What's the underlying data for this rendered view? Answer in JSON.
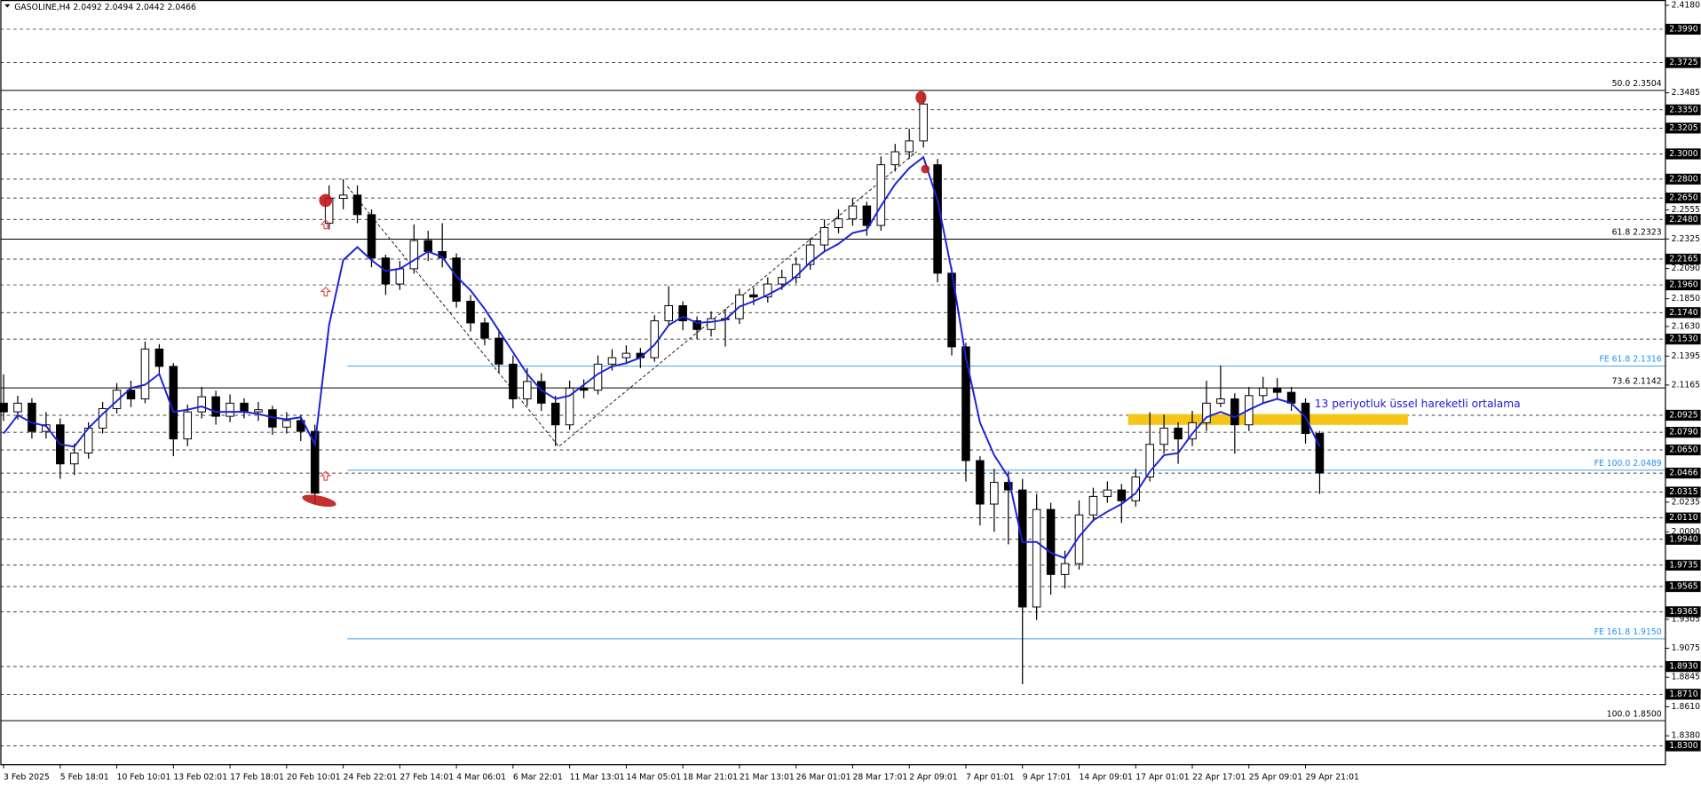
{
  "chart_data": {
    "type": "candlestick",
    "title": "GASOLINE,H4 2.0492 2.0494 2.0442 2.0466",
    "annotation": "13 periyotluk üssel hareketli ortalama",
    "up_color": "#ffffff",
    "down_color": "#000000",
    "ylim": [
      1.8155,
      2.4222
    ],
    "yticks": [
      {
        "value": 2.418,
        "label": "2.4180"
      },
      2.3485,
      2.2555,
      2.2325,
      {
        "value": 2.209,
        "label": "2.2090"
      },
      {
        "value": 2.185,
        "label": "2.1850"
      },
      {
        "value": 2.163,
        "label": "2.1630"
      },
      2.1395,
      2.1165,
      2.0235,
      {
        "value": 2.0,
        "label": "2.0000"
      },
      1.9305,
      1.9075,
      1.8845,
      {
        "value": 1.861,
        "label": "1.8610"
      },
      {
        "value": 1.838,
        "label": "1.8380"
      }
    ],
    "xticks": [
      {
        "value": 0,
        "label": "3 Feb 2025"
      },
      {
        "value": 4,
        "label": "5 Feb 18:01"
      },
      {
        "value": 8,
        "label": "10 Feb 10:01"
      },
      {
        "value": 12,
        "label": "13 Feb 02:01"
      },
      {
        "value": 16,
        "label": "17 Feb 18:01"
      },
      {
        "value": 20,
        "label": "20 Feb 10:01"
      },
      {
        "value": 24,
        "label": "24 Feb 22:01"
      },
      {
        "value": 28,
        "label": "27 Feb 14:01"
      },
      {
        "value": 32,
        "label": "4 Mar 06:01"
      },
      {
        "value": 36,
        "label": "6 Mar 22:01"
      },
      {
        "value": 40,
        "label": "11 Mar 13:01"
      },
      {
        "value": 44,
        "label": "14 Mar 05:01"
      },
      {
        "value": 48,
        "label": "18 Mar 21:01"
      },
      {
        "value": 52,
        "label": "21 Mar 13:01"
      },
      {
        "value": 56,
        "label": "26 Mar 01:01"
      },
      {
        "value": 60,
        "label": "28 Mar 17:01"
      },
      {
        "value": 64,
        "label": "2 Apr 09:01"
      },
      {
        "value": 68,
        "label": "7 Apr 01:01"
      },
      {
        "value": 72,
        "label": "9 Apr 17:01"
      },
      {
        "value": 76,
        "label": "14 Apr 09:01"
      },
      {
        "value": 80,
        "label": "17 Apr 01:01"
      },
      {
        "value": 84,
        "label": "22 Apr 17:01"
      },
      {
        "value": 88,
        "label": "25 Apr 09:01"
      },
      {
        "value": 92,
        "label": "29 Apr 21:01"
      }
    ],
    "levels": [
      {
        "value": 2.399,
        "label": "2.3990"
      },
      2.3725,
      {
        "value": 2.335,
        "label": "2.3350"
      },
      2.3205,
      {
        "value": 2.3,
        "label": "2.3000"
      },
      {
        "value": 2.28,
        "label": "2.2800"
      },
      {
        "value": 2.265,
        "label": "2.2650"
      },
      {
        "value": 2.248,
        "label": "2.2480"
      },
      2.2165,
      {
        "value": 2.196,
        "label": "2.1960"
      },
      {
        "value": 2.174,
        "label": "2.1740"
      },
      {
        "value": 2.153,
        "label": "2.1530"
      },
      2.0925,
      {
        "value": 2.079,
        "label": "2.0790"
      },
      {
        "value": 2.065,
        "label": "2.0650"
      },
      2.0466,
      2.0315,
      {
        "value": 2.011,
        "label": "2.0110"
      },
      {
        "value": 1.994,
        "label": "1.9940"
      },
      1.9735,
      1.9565,
      1.9365,
      {
        "value": 1.893,
        "label": "1.8930"
      },
      {
        "value": 1.871,
        "label": "1.8710"
      },
      {
        "value": 1.83,
        "label": "1.8300"
      }
    ],
    "fib_levels": [
      {
        "value": 2.3504,
        "label": "50.0 2.3504"
      },
      {
        "value": 2.2323,
        "label": "61.8 2.2323"
      },
      {
        "value": 2.1142,
        "label": "73.6 2.1142"
      },
      {
        "value": 1.85,
        "label": "100.0 1.8500"
      }
    ],
    "fe_levels": [
      {
        "value": 2.1316,
        "label": "FE 61.8 2.1316"
      },
      {
        "value": 2.0489,
        "label": "FE 100.0 2.0489"
      },
      {
        "value": 1.915,
        "label": "FE 161.8 1.9150"
      }
    ],
    "candles": {
      "open": [
        2.1021,
        2.0952,
        2.1021,
        2.0797,
        2.0849,
        2.0539,
        2.0625,
        2.0823,
        2.0978,
        2.1124,
        2.1055,
        2.1451,
        2.1313,
        2.0737,
        2.0952,
        2.1072,
        2.0917,
        2.1021,
        2.0952,
        2.0969,
        2.0831,
        2.0883,
        2.0797,
        2.245,
        2.2647,
        2.2673,
        2.2518,
        2.2174,
        2.1967,
        2.2088,
        2.2312,
        2.2225,
        2.2174,
        2.183,
        2.1658,
        2.1537,
        2.1331,
        2.1055,
        2.1193,
        2.1021,
        2.0849,
        2.1141,
        2.1124,
        2.1331,
        2.1382,
        2.1417,
        2.1382,
        2.1675,
        2.1795,
        2.1675,
        2.1606,
        2.1692,
        2.1692,
        2.1881,
        2.1864,
        2.1967,
        2.2019,
        2.2122,
        2.2277,
        2.2415,
        2.2484,
        2.2587,
        2.2432,
        2.2914,
        2.3017,
        2.3103,
        2.2914,
        2.2053,
        2.1468,
        2.0565,
        2.022,
        2.0392,
        2.0332,
        1.9403,
        2.0177,
        1.9661,
        1.9747,
        2.0134,
        2.0281,
        2.0332,
        2.0246,
        2.0435,
        2.0694,
        2.0823,
        2.0737,
        2.0866,
        2.1021,
        2.1055,
        2.0849,
        2.1081,
        2.1141,
        2.1107,
        2.1021,
        2.078
      ],
      "high": [
        2.125,
        2.108,
        2.106,
        2.095,
        2.09,
        2.07,
        2.087,
        2.103,
        2.118,
        2.12,
        2.151,
        2.149,
        2.134,
        2.101,
        2.115,
        2.112,
        2.109,
        2.106,
        2.103,
        2.1,
        2.095,
        2.093,
        2.085,
        2.275,
        2.28,
        2.275,
        2.256,
        2.22,
        2.215,
        2.244,
        2.239,
        2.245,
        2.221,
        2.188,
        2.17,
        2.159,
        2.14,
        2.13,
        2.126,
        2.108,
        2.12,
        2.121,
        2.14,
        2.145,
        2.148,
        2.146,
        2.172,
        2.195,
        2.183,
        2.171,
        2.175,
        2.177,
        2.193,
        2.194,
        2.202,
        2.208,
        2.218,
        2.233,
        2.248,
        2.256,
        2.265,
        2.262,
        2.298,
        2.308,
        2.32,
        2.3485,
        2.296,
        2.21,
        2.15,
        2.06,
        2.05,
        2.048,
        2.042,
        2.03,
        2.023,
        1.985,
        2.025,
        2.035,
        2.04,
        2.038,
        2.05,
        2.095,
        2.093,
        2.087,
        2.096,
        2.12,
        2.132,
        2.11,
        2.115,
        2.123,
        2.122,
        2.115,
        2.106,
        2.08
      ],
      "low": [
        2.088,
        2.089,
        2.074,
        2.074,
        2.042,
        2.045,
        2.058,
        2.078,
        2.094,
        2.099,
        2.102,
        2.125,
        2.06,
        2.068,
        2.09,
        2.085,
        2.087,
        2.09,
        2.088,
        2.077,
        2.078,
        2.072,
        2.022,
        2.24,
        2.256,
        2.245,
        2.21,
        2.188,
        2.192,
        2.205,
        2.215,
        2.21,
        2.178,
        2.159,
        2.148,
        2.126,
        2.098,
        2.1,
        2.096,
        2.068,
        2.081,
        2.106,
        2.109,
        2.128,
        2.133,
        2.13,
        2.135,
        2.163,
        2.16,
        2.153,
        2.155,
        2.147,
        2.165,
        2.18,
        2.182,
        2.192,
        2.197,
        2.208,
        2.223,
        2.237,
        2.243,
        2.235,
        2.239,
        2.286,
        2.296,
        2.305,
        2.198,
        2.14,
        2.04,
        2.005,
        2.0,
        1.99,
        1.879,
        1.93,
        1.95,
        1.955,
        1.97,
        2.008,
        2.023,
        2.007,
        2.02,
        2.04,
        2.062,
        2.054,
        2.068,
        2.08,
        2.099,
        2.062,
        2.08,
        2.102,
        2.105,
        2.096,
        2.07,
        2.03
      ],
      "close": [
        2.0952,
        2.1021,
        2.0797,
        2.0849,
        2.0539,
        2.0625,
        2.0823,
        2.0978,
        2.1124,
        2.1055,
        2.1451,
        2.1313,
        2.0737,
        2.0952,
        2.1072,
        2.0917,
        2.1021,
        2.0952,
        2.0969,
        2.0831,
        2.0883,
        2.0797,
        2.0306,
        2.2647,
        2.2673,
        2.2518,
        2.2174,
        2.1967,
        2.2088,
        2.2312,
        2.2225,
        2.2174,
        2.183,
        2.1658,
        2.1537,
        2.1331,
        2.1055,
        2.1193,
        2.1021,
        2.0849,
        2.1141,
        2.1124,
        2.1331,
        2.1382,
        2.1417,
        2.1382,
        2.1675,
        2.1795,
        2.1675,
        2.1606,
        2.1692,
        2.1692,
        2.1881,
        2.1864,
        2.1967,
        2.2019,
        2.2122,
        2.2277,
        2.2415,
        2.2484,
        2.2587,
        2.2432,
        2.2914,
        2.3017,
        2.3103,
        2.3396,
        2.2053,
        2.1468,
        2.0565,
        2.022,
        2.0392,
        2.0332,
        1.9403,
        2.0177,
        1.9661,
        1.9747,
        2.0134,
        2.0281,
        2.0332,
        2.0246,
        2.0435,
        2.0694,
        2.0823,
        2.0737,
        2.0866,
        2.1021,
        2.1055,
        2.0849,
        2.1081,
        2.1141,
        2.1107,
        2.1021,
        2.078,
        2.0466
      ]
    },
    "ema": {
      "color": "#1a22d8",
      "values": [
        2.078,
        2.0926,
        2.0866,
        2.084,
        2.0694,
        2.0676,
        2.0823,
        2.0935,
        2.1038,
        2.1141,
        2.1167,
        2.1253,
        2.0952,
        2.0969,
        2.0995,
        2.0952,
        2.0952,
        2.0952,
        2.0935,
        2.0909,
        2.0892,
        2.0909,
        2.0694,
        2.164,
        2.2157,
        2.226,
        2.2157,
        2.2071,
        2.2088,
        2.2157,
        2.2225,
        2.2182,
        2.2028,
        2.1916,
        2.1769,
        2.1597,
        2.1425,
        2.1253,
        2.1124,
        2.1055,
        2.1081,
        2.1167,
        2.1253,
        2.1313,
        2.1339,
        2.1382,
        2.1485,
        2.164,
        2.1709,
        2.1658,
        2.1666,
        2.1683,
        2.1787,
        2.183,
        2.1881,
        2.1941,
        2.2028,
        2.2139,
        2.2225,
        2.2286,
        2.2372,
        2.2398,
        2.2587,
        2.2759,
        2.2888,
        2.2974,
        2.263,
        2.2071,
        2.1382,
        2.0866,
        2.0608,
        2.0435,
        1.9919,
        1.9919,
        1.9833,
        1.979,
        1.9962,
        2.0091,
        2.016,
        2.022,
        2.0306,
        2.0478,
        2.0608,
        2.0625,
        2.078,
        2.0909,
        2.0952,
        2.0909,
        2.0969,
        2.1021,
        2.1055,
        2.1021,
        2.0909,
        2.0676
      ]
    }
  }
}
